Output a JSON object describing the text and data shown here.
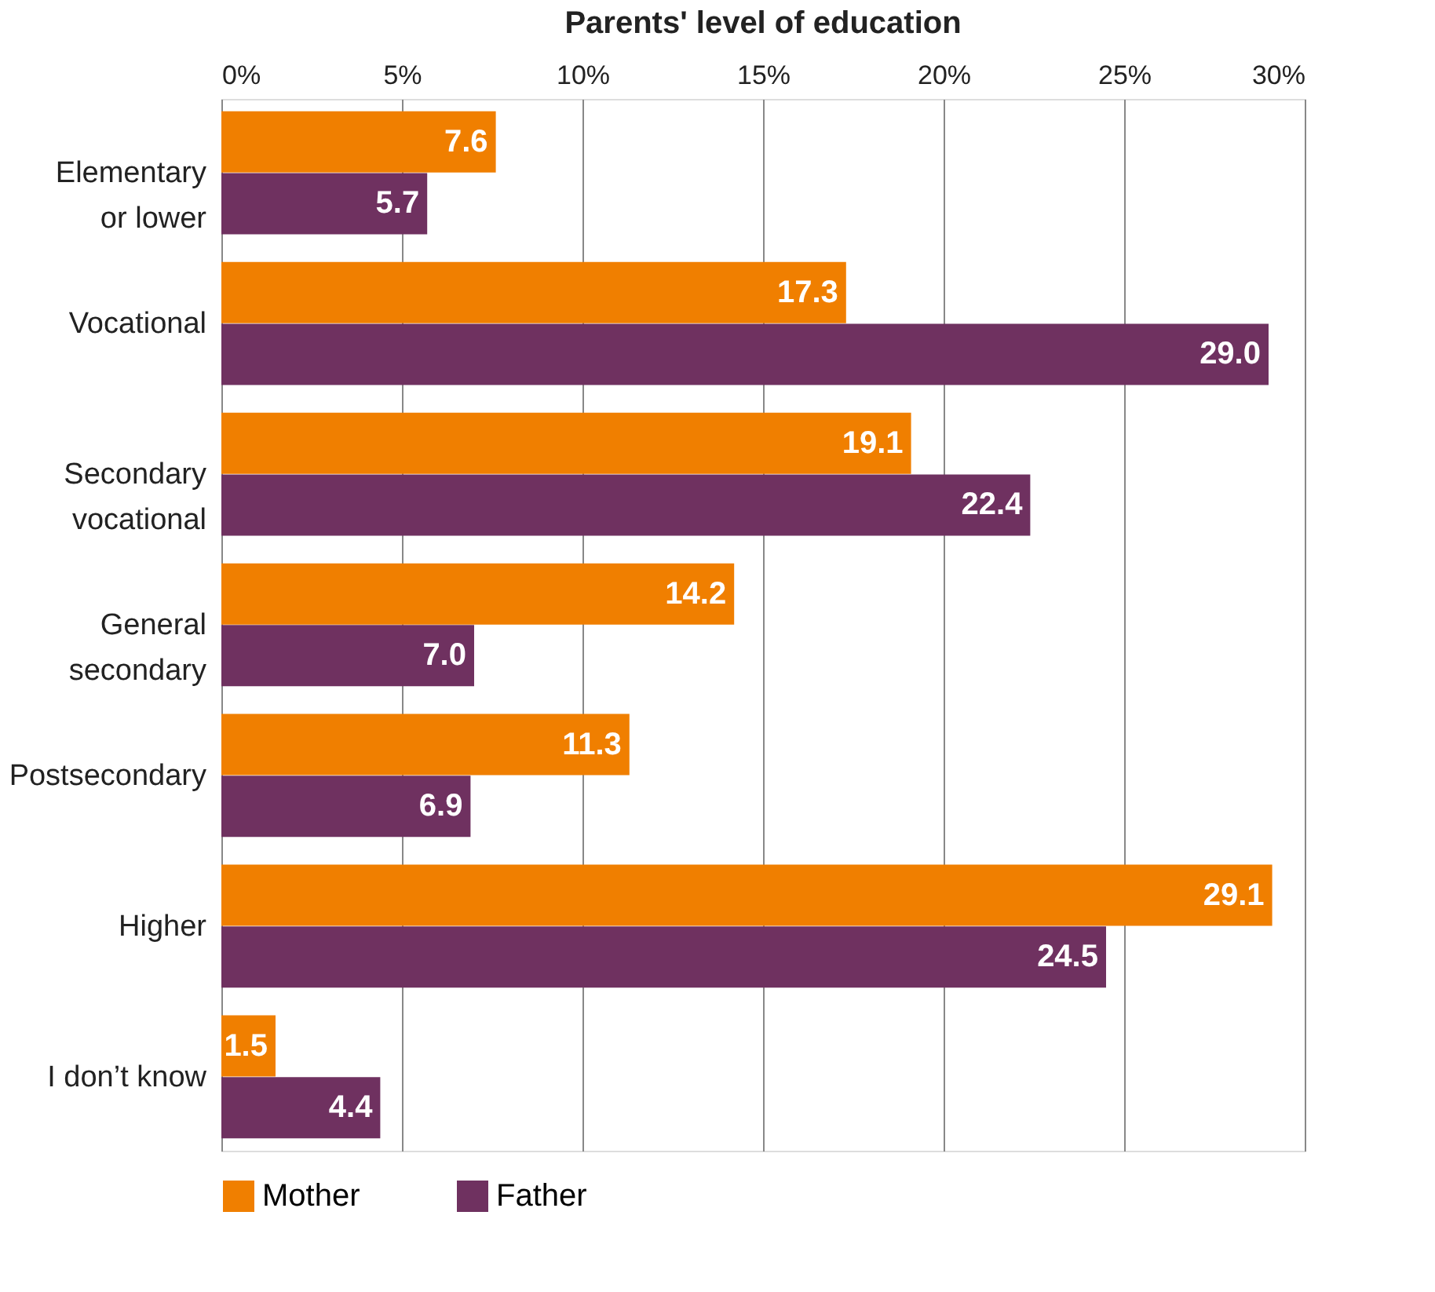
{
  "chart_data": {
    "type": "bar",
    "orientation": "horizontal",
    "title": "Parents' level of education",
    "categories": [
      "Elementary\nor lower",
      "Vocational",
      "Secondary\nvocational",
      "General\nsecondary",
      "Postsecondary",
      "Higher",
      "I don’t know"
    ],
    "series": [
      {
        "name": "Mother",
        "color": "#f07f00",
        "values": [
          7.6,
          17.3,
          19.1,
          14.2,
          11.3,
          29.1,
          1.5
        ],
        "value_labels": [
          "7.6",
          "17.3",
          "19.1",
          "14.2",
          "11.3",
          "29.1",
          "1.5"
        ]
      },
      {
        "name": "Father",
        "color": "#6f3160",
        "values": [
          5.7,
          29.0,
          22.4,
          7.0,
          6.9,
          24.5,
          4.4
        ],
        "value_labels": [
          "5.7",
          "29.0",
          "22.4",
          "7.0",
          "6.9",
          "24.5",
          "4.4"
        ]
      }
    ],
    "xlim": [
      0,
      30
    ],
    "xticks": [
      {
        "value": 0,
        "label": "0%"
      },
      {
        "value": 5,
        "label": "5%"
      },
      {
        "value": 10,
        "label": "10%"
      },
      {
        "value": 15,
        "label": "15%"
      },
      {
        "value": 20,
        "label": "20%"
      },
      {
        "value": 25,
        "label": "25%"
      },
      {
        "value": 30,
        "label": "30%"
      }
    ],
    "grid": "x",
    "legend": "bottom"
  }
}
